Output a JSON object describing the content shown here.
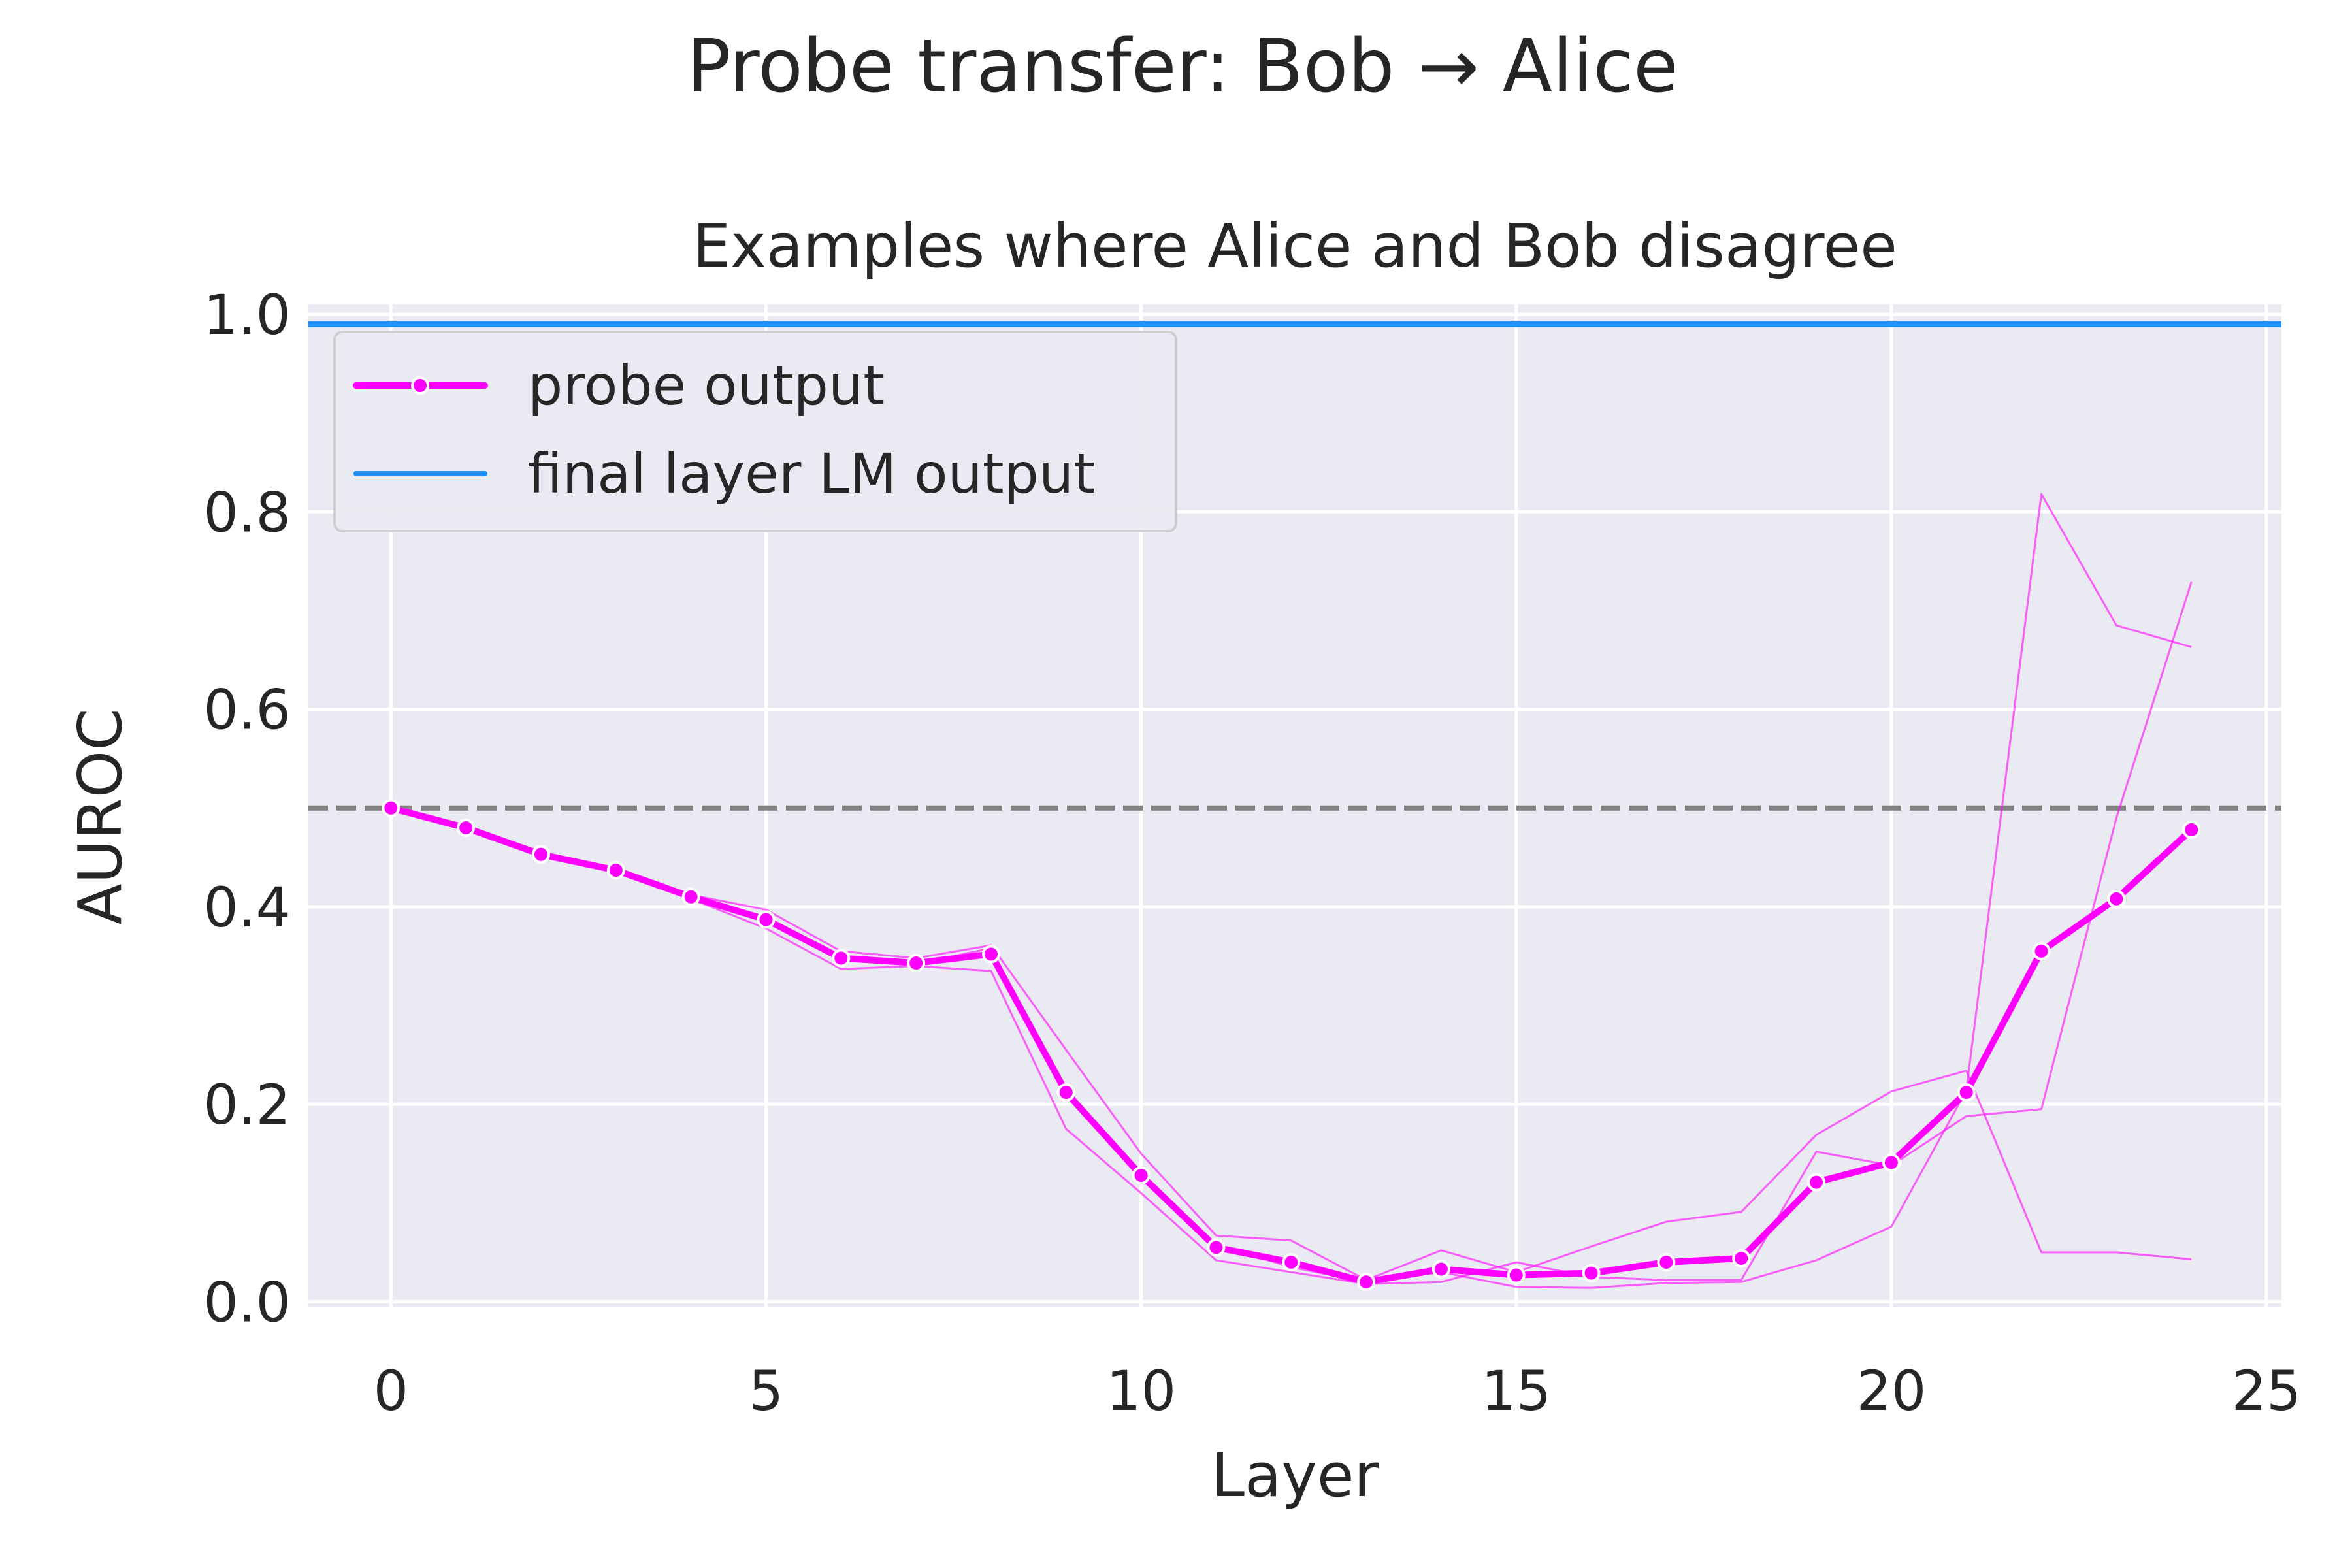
{
  "figure": {
    "suptitle": "Probe transfer: Bob → Alice"
  },
  "chart_data": {
    "type": "line",
    "title": "Examples where Alice and Bob disagree",
    "xlabel": "Layer",
    "ylabel": "AUROC",
    "xlim": [
      -1.1,
      25.2
    ],
    "ylim": [
      -0.005,
      1.01
    ],
    "xticks": [
      0,
      5,
      10,
      15,
      20,
      25
    ],
    "yticks": [
      0.0,
      0.2,
      0.4,
      0.6,
      0.8,
      1.0
    ],
    "xtick_labels": [
      "0",
      "5",
      "10",
      "15",
      "20",
      "25"
    ],
    "ytick_labels": [
      "0.0",
      "0.2",
      "0.4",
      "0.6",
      "0.8",
      "1.0"
    ],
    "grid": true,
    "legend_position": "upper-left",
    "legend": [
      "probe output",
      "final layer LM output"
    ],
    "series": [
      {
        "name": "probe output",
        "color": "#ff00ff",
        "style": "solid-with-markers",
        "x": [
          0,
          1,
          2,
          3,
          4,
          5,
          6,
          7,
          8,
          9,
          10,
          11,
          12,
          13,
          14,
          15,
          16,
          17,
          18,
          19,
          20,
          21,
          22,
          23,
          24
        ],
        "values": [
          0.5,
          0.48,
          0.453,
          0.437,
          0.41,
          0.387,
          0.348,
          0.343,
          0.352,
          0.212,
          0.128,
          0.055,
          0.04,
          0.02,
          0.033,
          0.027,
          0.029,
          0.04,
          0.044,
          0.121,
          0.141,
          0.212,
          0.355,
          0.408,
          0.478
        ]
      },
      {
        "name": "final layer LM output",
        "color": "#1e90ff",
        "style": "solid",
        "x": [
          -1.1,
          25.2
        ],
        "values": [
          0.99,
          0.99
        ]
      }
    ],
    "individual_runs": {
      "color": "#ff00ff",
      "x": [
        0,
        1,
        2,
        3,
        4,
        5,
        6,
        7,
        8,
        9,
        10,
        11,
        12,
        13,
        14,
        15,
        16,
        17,
        18,
        19,
        20,
        21,
        22,
        23,
        24
      ],
      "runs": [
        [
          0.5,
          0.48,
          0.453,
          0.437,
          0.412,
          0.397,
          0.355,
          0.348,
          0.361,
          0.255,
          0.15,
          0.067,
          0.062,
          0.022,
          0.052,
          0.03,
          0.056,
          0.081,
          0.091,
          0.169,
          0.213,
          0.234,
          0.05,
          0.05,
          0.043
        ],
        [
          0.5,
          0.48,
          0.453,
          0.437,
          0.408,
          0.378,
          0.337,
          0.34,
          0.335,
          0.175,
          0.11,
          0.042,
          0.03,
          0.018,
          0.02,
          0.04,
          0.025,
          0.022,
          0.022,
          0.152,
          0.138,
          0.188,
          0.195,
          0.49,
          0.729
        ],
        [
          0.5,
          0.48,
          0.453,
          0.437,
          0.41,
          0.385,
          0.35,
          0.342,
          0.358,
          0.21,
          0.125,
          0.058,
          0.035,
          0.02,
          0.03,
          0.015,
          0.014,
          0.019,
          0.02,
          0.042,
          0.076,
          0.214,
          0.818,
          0.685,
          0.663
        ]
      ]
    },
    "reference_line": {
      "y": 0.5,
      "color": "#808080",
      "style": "dashed"
    },
    "background": "#eaeaf2",
    "grid_color": "#ffffff"
  }
}
